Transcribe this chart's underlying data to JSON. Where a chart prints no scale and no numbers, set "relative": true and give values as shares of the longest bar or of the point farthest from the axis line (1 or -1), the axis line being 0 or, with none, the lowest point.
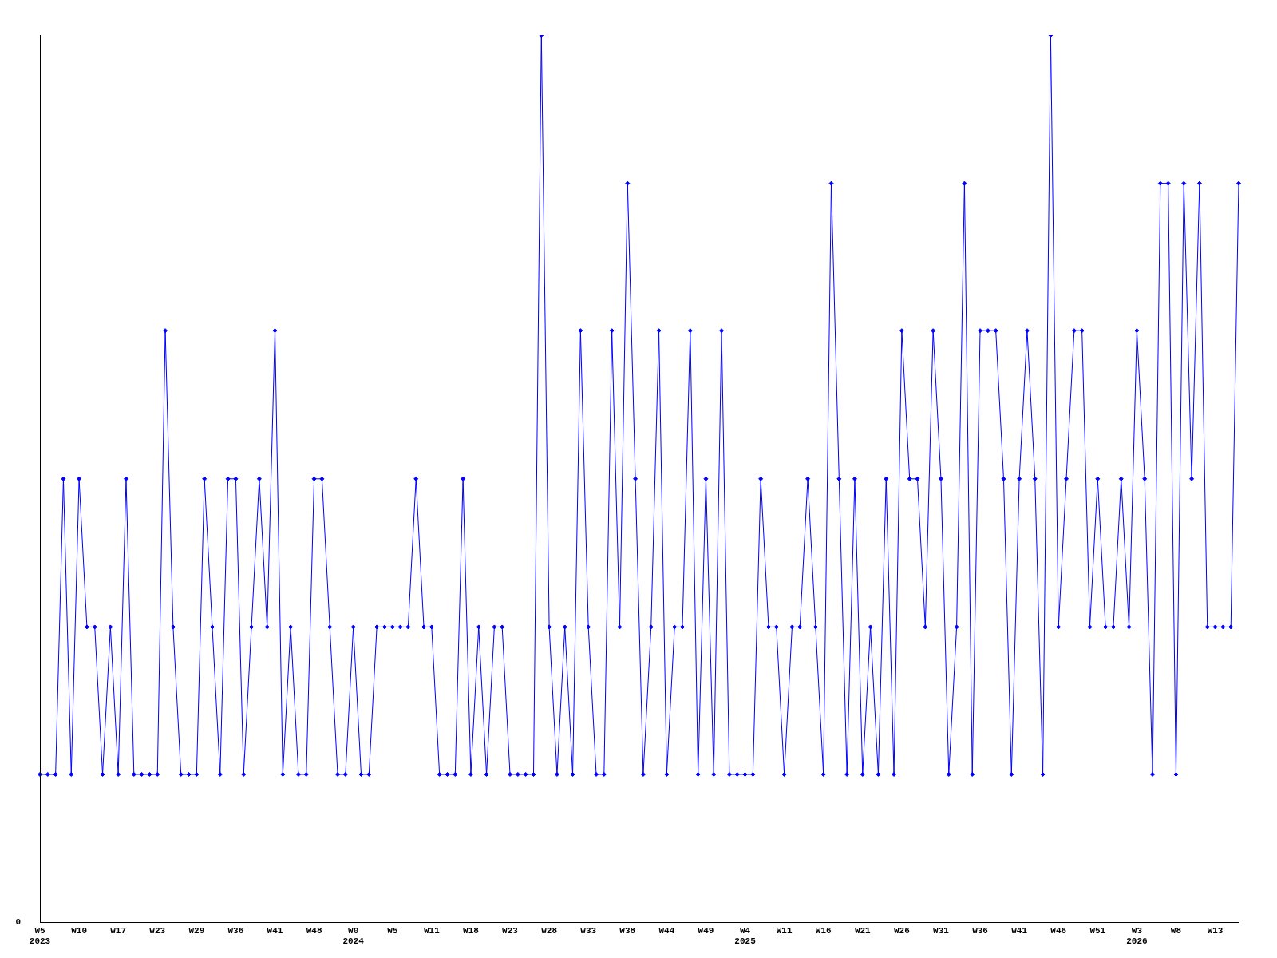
{
  "chart_data": {
    "type": "line",
    "relative": true,
    "marker": "diamond",
    "color": "#0000ff",
    "annotations": [
      "0"
    ],
    "categories": [
      "W5\n2023",
      null,
      null,
      null,
      null,
      "W10",
      null,
      null,
      null,
      null,
      "W17",
      null,
      null,
      null,
      null,
      "W23",
      null,
      null,
      null,
      null,
      "W29",
      null,
      null,
      null,
      null,
      "W36",
      null,
      null,
      null,
      null,
      "W41",
      null,
      null,
      null,
      null,
      "W48",
      null,
      null,
      null,
      null,
      "W0\n2024",
      null,
      null,
      null,
      null,
      "W5",
      null,
      null,
      null,
      null,
      "W11",
      null,
      null,
      null,
      null,
      "W18",
      null,
      null,
      null,
      null,
      "W23",
      null,
      null,
      null,
      null,
      "W28",
      null,
      null,
      null,
      null,
      "W33",
      null,
      null,
      null,
      null,
      "W38",
      null,
      null,
      null,
      null,
      "W44",
      null,
      null,
      null,
      null,
      "W49",
      null,
      null,
      null,
      null,
      "W4\n2025",
      null,
      null,
      null,
      null,
      "W11",
      null,
      null,
      null,
      null,
      "W16",
      null,
      null,
      null,
      null,
      "W21",
      null,
      null,
      null,
      null,
      "W26",
      null,
      null,
      null,
      null,
      "W31",
      null,
      null,
      null,
      null,
      "W36",
      null,
      null,
      null,
      null,
      "W41",
      null,
      null,
      null,
      null,
      "W46",
      null,
      null,
      null,
      null,
      "W51",
      null,
      null,
      null,
      null,
      "W3\n2026",
      null,
      null,
      null,
      null,
      "W8",
      null,
      null,
      null,
      null,
      "W13",
      null,
      null,
      null
    ],
    "values": [
      0.167,
      0.167,
      0.167,
      0.5,
      0.167,
      0.5,
      0.333,
      0.333,
      0.167,
      0.333,
      0.167,
      0.5,
      0.167,
      0.167,
      0.167,
      0.167,
      0.667,
      0.333,
      0.167,
      0.167,
      0.167,
      0.5,
      0.333,
      0.167,
      0.5,
      0.5,
      0.167,
      0.333,
      0.5,
      0.333,
      0.667,
      0.167,
      0.333,
      0.167,
      0.167,
      0.5,
      0.5,
      0.333,
      0.167,
      0.167,
      0.333,
      0.167,
      0.167,
      0.333,
      0.333,
      0.333,
      0.333,
      0.333,
      0.5,
      0.333,
      0.333,
      0.167,
      0.167,
      0.167,
      0.5,
      0.167,
      0.333,
      0.167,
      0.333,
      0.333,
      0.167,
      0.167,
      0.167,
      0.167,
      1,
      0.333,
      0.167,
      0.333,
      0.167,
      0.667,
      0.333,
      0.167,
      0.167,
      0.667,
      0.333,
      0.833,
      0.5,
      0.167,
      0.333,
      0.667,
      0.167,
      0.333,
      0.333,
      0.667,
      0.167,
      0.5,
      0.167,
      0.667,
      0.167,
      0.167,
      0.167,
      0.167,
      0.5,
      0.333,
      0.333,
      0.167,
      0.333,
      0.333,
      0.5,
      0.333,
      0.167,
      0.833,
      0.5,
      0.167,
      0.5,
      0.167,
      0.333,
      0.167,
      0.5,
      0.167,
      0.667,
      0.5,
      0.5,
      0.333,
      0.667,
      0.5,
      0.167,
      0.333,
      0.833,
      0.167,
      0.667,
      0.667,
      0.667,
      0.5,
      0.167,
      0.5,
      0.667,
      0.5,
      0.167,
      1,
      0.333,
      0.5,
      0.667,
      0.667,
      0.333,
      0.5,
      0.333,
      0.333,
      0.5,
      0.333,
      0.667,
      0.5,
      0.167,
      0.833,
      0.833,
      0.167,
      0.833,
      0.5,
      0.833,
      0.333,
      0.333,
      0.333,
      0.333,
      0.833
    ]
  }
}
